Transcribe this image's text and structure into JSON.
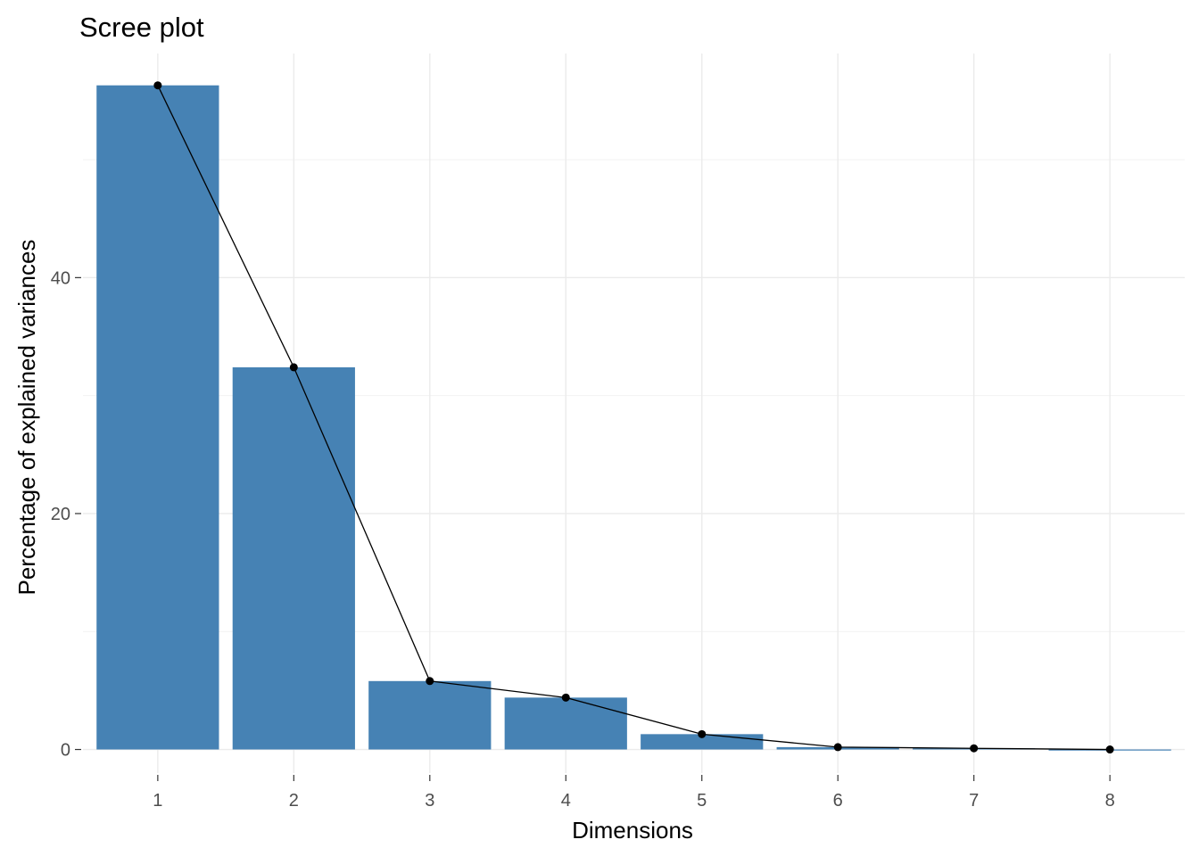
{
  "chart_data": {
    "type": "bar",
    "title": "Scree plot",
    "xlabel": "Dimensions",
    "ylabel": "Percentage of explained variances",
    "categories": [
      "1",
      "2",
      "3",
      "4",
      "5",
      "6",
      "7",
      "8"
    ],
    "values": [
      56.3,
      32.4,
      5.8,
      4.4,
      1.3,
      0.2,
      0.1,
      0.0
    ],
    "ylim": [
      -2.0,
      59.0
    ],
    "yticks": [
      0,
      20,
      40
    ],
    "grid": true,
    "bar_color": "#4682B4",
    "line_color": "#000000",
    "overlay": "line with points on bar tops"
  }
}
